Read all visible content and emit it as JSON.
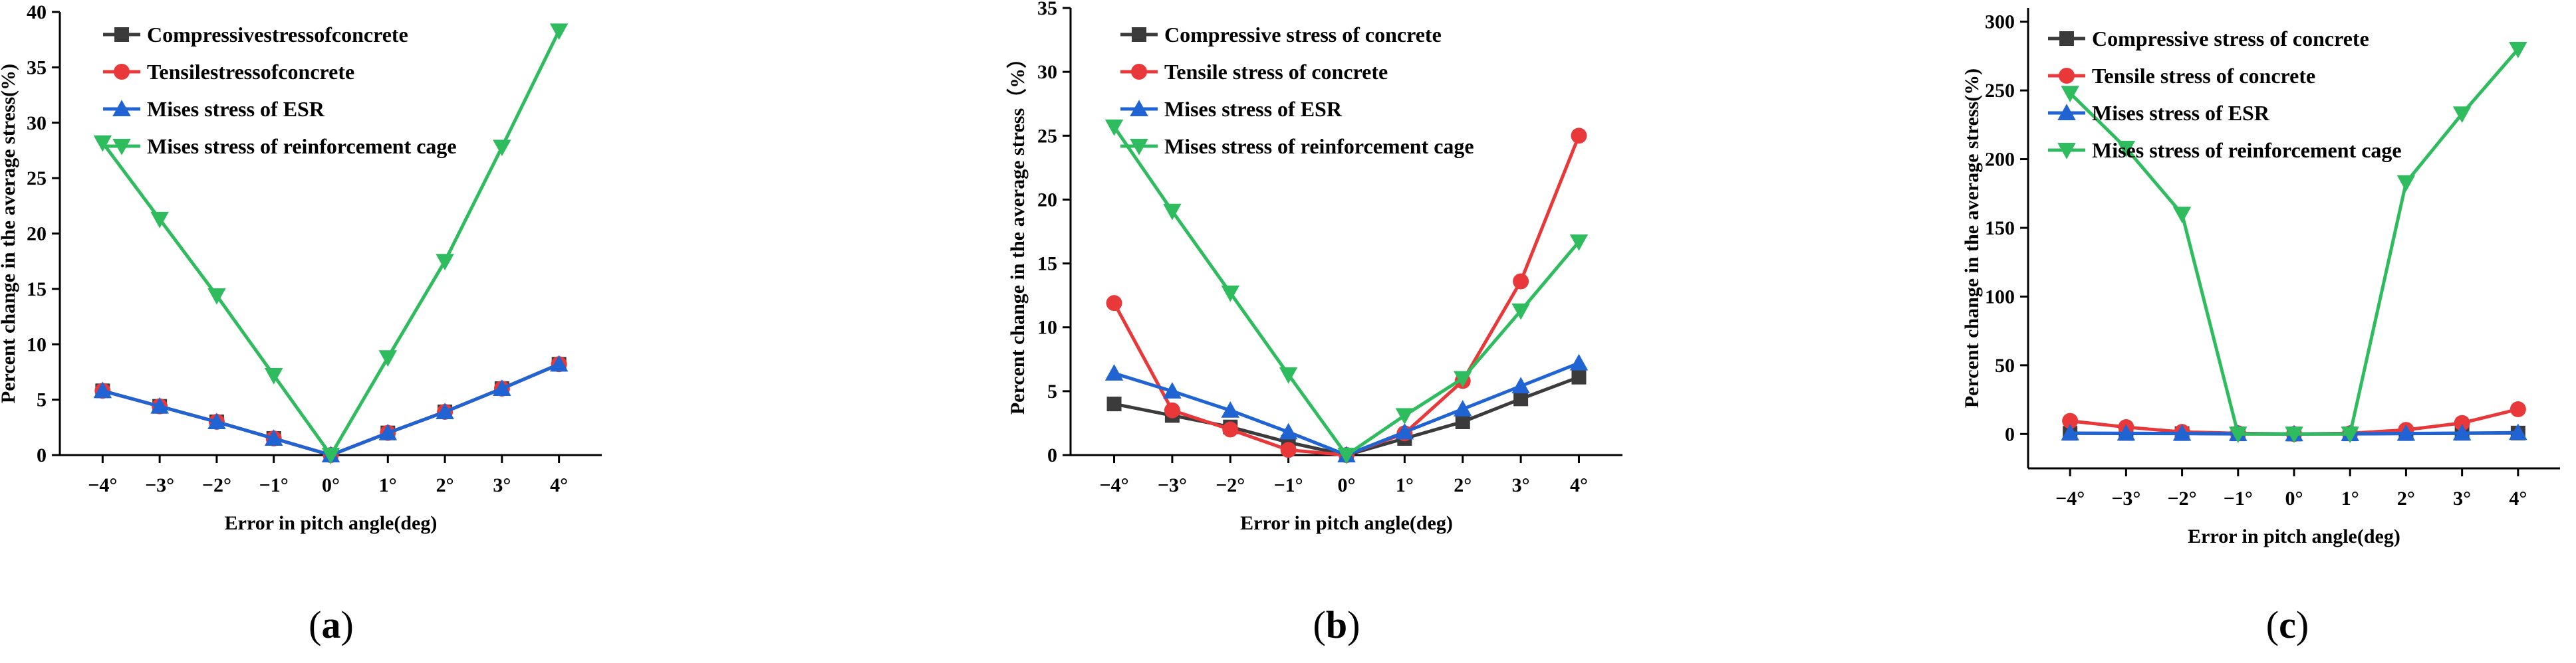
{
  "colors": {
    "compressive": "#3b3b3b",
    "tensile": "#e8383a",
    "mises_esr": "#2064d4",
    "mises_cage": "#2ebc5f"
  },
  "chart_data": [
    {
      "type": "line",
      "caption_letter": "a",
      "xlabel": "Error in pitch angle(deg)",
      "ylabel": "Percent change in the average stress(%)",
      "categories": [
        "−4°",
        "−3°",
        "−2°",
        "−1°",
        "0°",
        "1°",
        "2°",
        "3°",
        "4°"
      ],
      "ylim": [
        0,
        40
      ],
      "yticks": [
        0,
        5,
        10,
        15,
        20,
        25,
        30,
        35,
        40
      ],
      "series": [
        {
          "name": "Compressivestressofconcrete",
          "marker": "square",
          "color_key": "compressive",
          "values": [
            5.8,
            4.4,
            3.0,
            1.5,
            0,
            2.0,
            3.9,
            6.0,
            8.2
          ]
        },
        {
          "name": "Tensilestressofconcrete",
          "marker": "circle",
          "color_key": "tensile",
          "values": [
            5.8,
            4.4,
            3.0,
            1.5,
            0,
            2.0,
            3.9,
            6.0,
            8.2
          ]
        },
        {
          "name": "Mises stress of ESR",
          "marker": "triangle-up",
          "color_key": "mises_esr",
          "values": [
            5.8,
            4.4,
            3.0,
            1.5,
            0,
            2.0,
            3.9,
            6.0,
            8.2
          ]
        },
        {
          "name": "Mises stress of reinforcement cage",
          "marker": "triangle-down",
          "color_key": "mises_cage",
          "values": [
            28.2,
            21.3,
            14.4,
            7.2,
            0,
            8.8,
            17.5,
            27.8,
            38.3
          ]
        }
      ]
    },
    {
      "type": "line",
      "caption_letter": "b",
      "xlabel": "Error in pitch angle(deg)",
      "ylabel": "Percent change in the average stress（%）",
      "categories": [
        "−4°",
        "−3°",
        "−2°",
        "−1°",
        "0°",
        "1°",
        "2°",
        "3°",
        "4°"
      ],
      "ylim": [
        0,
        35
      ],
      "yticks": [
        0,
        5,
        10,
        15,
        20,
        25,
        30,
        35
      ],
      "series": [
        {
          "name": "Compressive stress of concrete",
          "marker": "square",
          "color_key": "compressive",
          "values": [
            4.0,
            3.1,
            2.2,
            1.0,
            0,
            1.3,
            2.6,
            4.4,
            6.1
          ]
        },
        {
          "name": "Tensile stress of concrete",
          "marker": "circle",
          "color_key": "tensile",
          "values": [
            11.9,
            3.5,
            2.0,
            0.4,
            0,
            1.7,
            5.8,
            13.6,
            25.0
          ]
        },
        {
          "name": "Mises stress of ESR",
          "marker": "triangle-up",
          "color_key": "mises_esr",
          "values": [
            6.4,
            5.0,
            3.5,
            1.8,
            0,
            1.8,
            3.6,
            5.4,
            7.2
          ]
        },
        {
          "name": "Mises stress of reinforcement cage",
          "marker": "triangle-down",
          "color_key": "mises_cage",
          "values": [
            25.7,
            19.1,
            12.7,
            6.3,
            0,
            3.1,
            6.0,
            11.3,
            16.7
          ]
        }
      ]
    },
    {
      "type": "line",
      "caption_letter": "c",
      "xlabel": "Error in pitch angle(deg)",
      "ylabel": "Percent change in the average stress(%)",
      "categories": [
        "−4°",
        "−3°",
        "−2°",
        "−1°",
        "0°",
        "1°",
        "2°",
        "3°",
        "4°"
      ],
      "ylim": [
        -25,
        310
      ],
      "yticks": [
        0,
        50,
        100,
        150,
        200,
        250,
        300
      ],
      "series": [
        {
          "name": "Compressive stress of concrete",
          "marker": "square",
          "color_key": "compressive",
          "values": [
            0.5,
            0.4,
            0.3,
            0.1,
            0,
            0.1,
            0.3,
            0.5,
            0.7
          ]
        },
        {
          "name": "Tensile stress of concrete",
          "marker": "circle",
          "color_key": "tensile",
          "values": [
            9.5,
            5.0,
            1.5,
            0.5,
            0,
            0.5,
            3.0,
            8.0,
            18.0
          ]
        },
        {
          "name": "Mises stress of ESR",
          "marker": "triangle-up",
          "color_key": "mises_esr",
          "values": [
            0.6,
            0.5,
            0.4,
            0.2,
            0,
            0.2,
            0.4,
            0.6,
            1.0
          ]
        },
        {
          "name": "Mises stress of reinforcement cage",
          "marker": "triangle-down",
          "color_key": "mises_cage",
          "values": [
            248,
            208,
            160,
            0,
            0,
            0,
            183,
            233,
            280
          ]
        }
      ]
    }
  ]
}
